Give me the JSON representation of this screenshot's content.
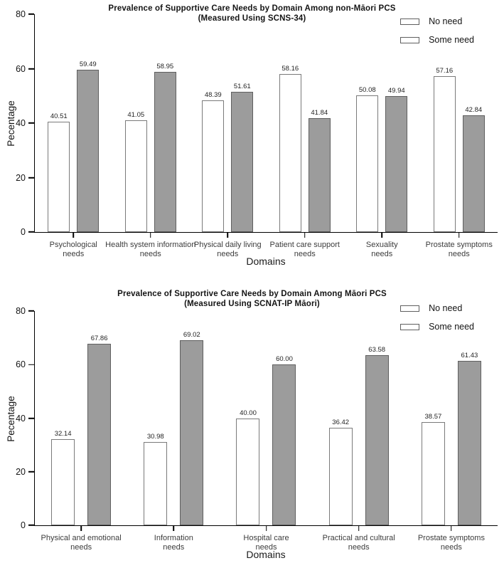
{
  "colors": {
    "background": "#ffffff",
    "axis": "#000000",
    "no_need_fill": "#ffffff",
    "no_need_border": "#7a7a7a",
    "some_need_fill": "#9c9c9c",
    "some_need_border": "#5f5f5f"
  },
  "chart_data": [
    {
      "type": "bar",
      "title_line1": "Prevalence of Supportive Care Needs by Domain Among non-Māori PCS",
      "title_line2": "(Measured Using SCNS-34)",
      "xlabel": "Domains",
      "ylabel": "Pecentage",
      "ylim": [
        0,
        80
      ],
      "yticks": [
        0,
        20,
        40,
        60,
        80
      ],
      "grid": false,
      "legend_position": "top-right",
      "categories": [
        "Psychological needs",
        "Health system information needs",
        "Physical daily living needs",
        "Patient care support needs",
        "Sexuality needs",
        "Prostate symptoms needs"
      ],
      "category_lines": [
        [
          "Psychological",
          "needs"
        ],
        [
          "Health system information",
          "needs"
        ],
        [
          "Physical daily living",
          "needs"
        ],
        [
          "Patient care support",
          "needs"
        ],
        [
          "Sexuality",
          "needs"
        ],
        [
          "Prostate symptoms",
          "needs"
        ]
      ],
      "series": [
        {
          "name": "No need",
          "values": [
            40.51,
            41.05,
            48.39,
            58.16,
            50.08,
            57.16
          ]
        },
        {
          "name": "Some need",
          "values": [
            59.49,
            58.95,
            51.61,
            41.84,
            49.94,
            42.84
          ]
        }
      ]
    },
    {
      "type": "bar",
      "title_line1": "Prevalence of Supportive Care Needs by Domain Among Māori PCS",
      "title_line2": "(Measured Using SCNAT-IP Māori)",
      "xlabel": "Domains",
      "ylabel": "Pecentage",
      "ylim": [
        0,
        80
      ],
      "yticks": [
        0,
        20,
        40,
        60,
        80
      ],
      "grid": false,
      "legend_position": "top-right",
      "categories": [
        "Physical and emotional needs",
        "Information needs",
        "Hospital care needs",
        "Practical and cultural needs",
        "Prostate symptoms needs"
      ],
      "category_lines": [
        [
          "Physical and emotional",
          "needs"
        ],
        [
          "Information",
          "needs"
        ],
        [
          "Hospital care",
          "needs"
        ],
        [
          "Practical and cultural",
          "needs"
        ],
        [
          "Prostate symptoms",
          "needs"
        ]
      ],
      "series": [
        {
          "name": "No need",
          "values": [
            32.14,
            30.98,
            40.0,
            36.42,
            38.57
          ]
        },
        {
          "name": "Some need",
          "values": [
            67.86,
            69.02,
            60.0,
            63.58,
            61.43
          ]
        }
      ]
    }
  ]
}
